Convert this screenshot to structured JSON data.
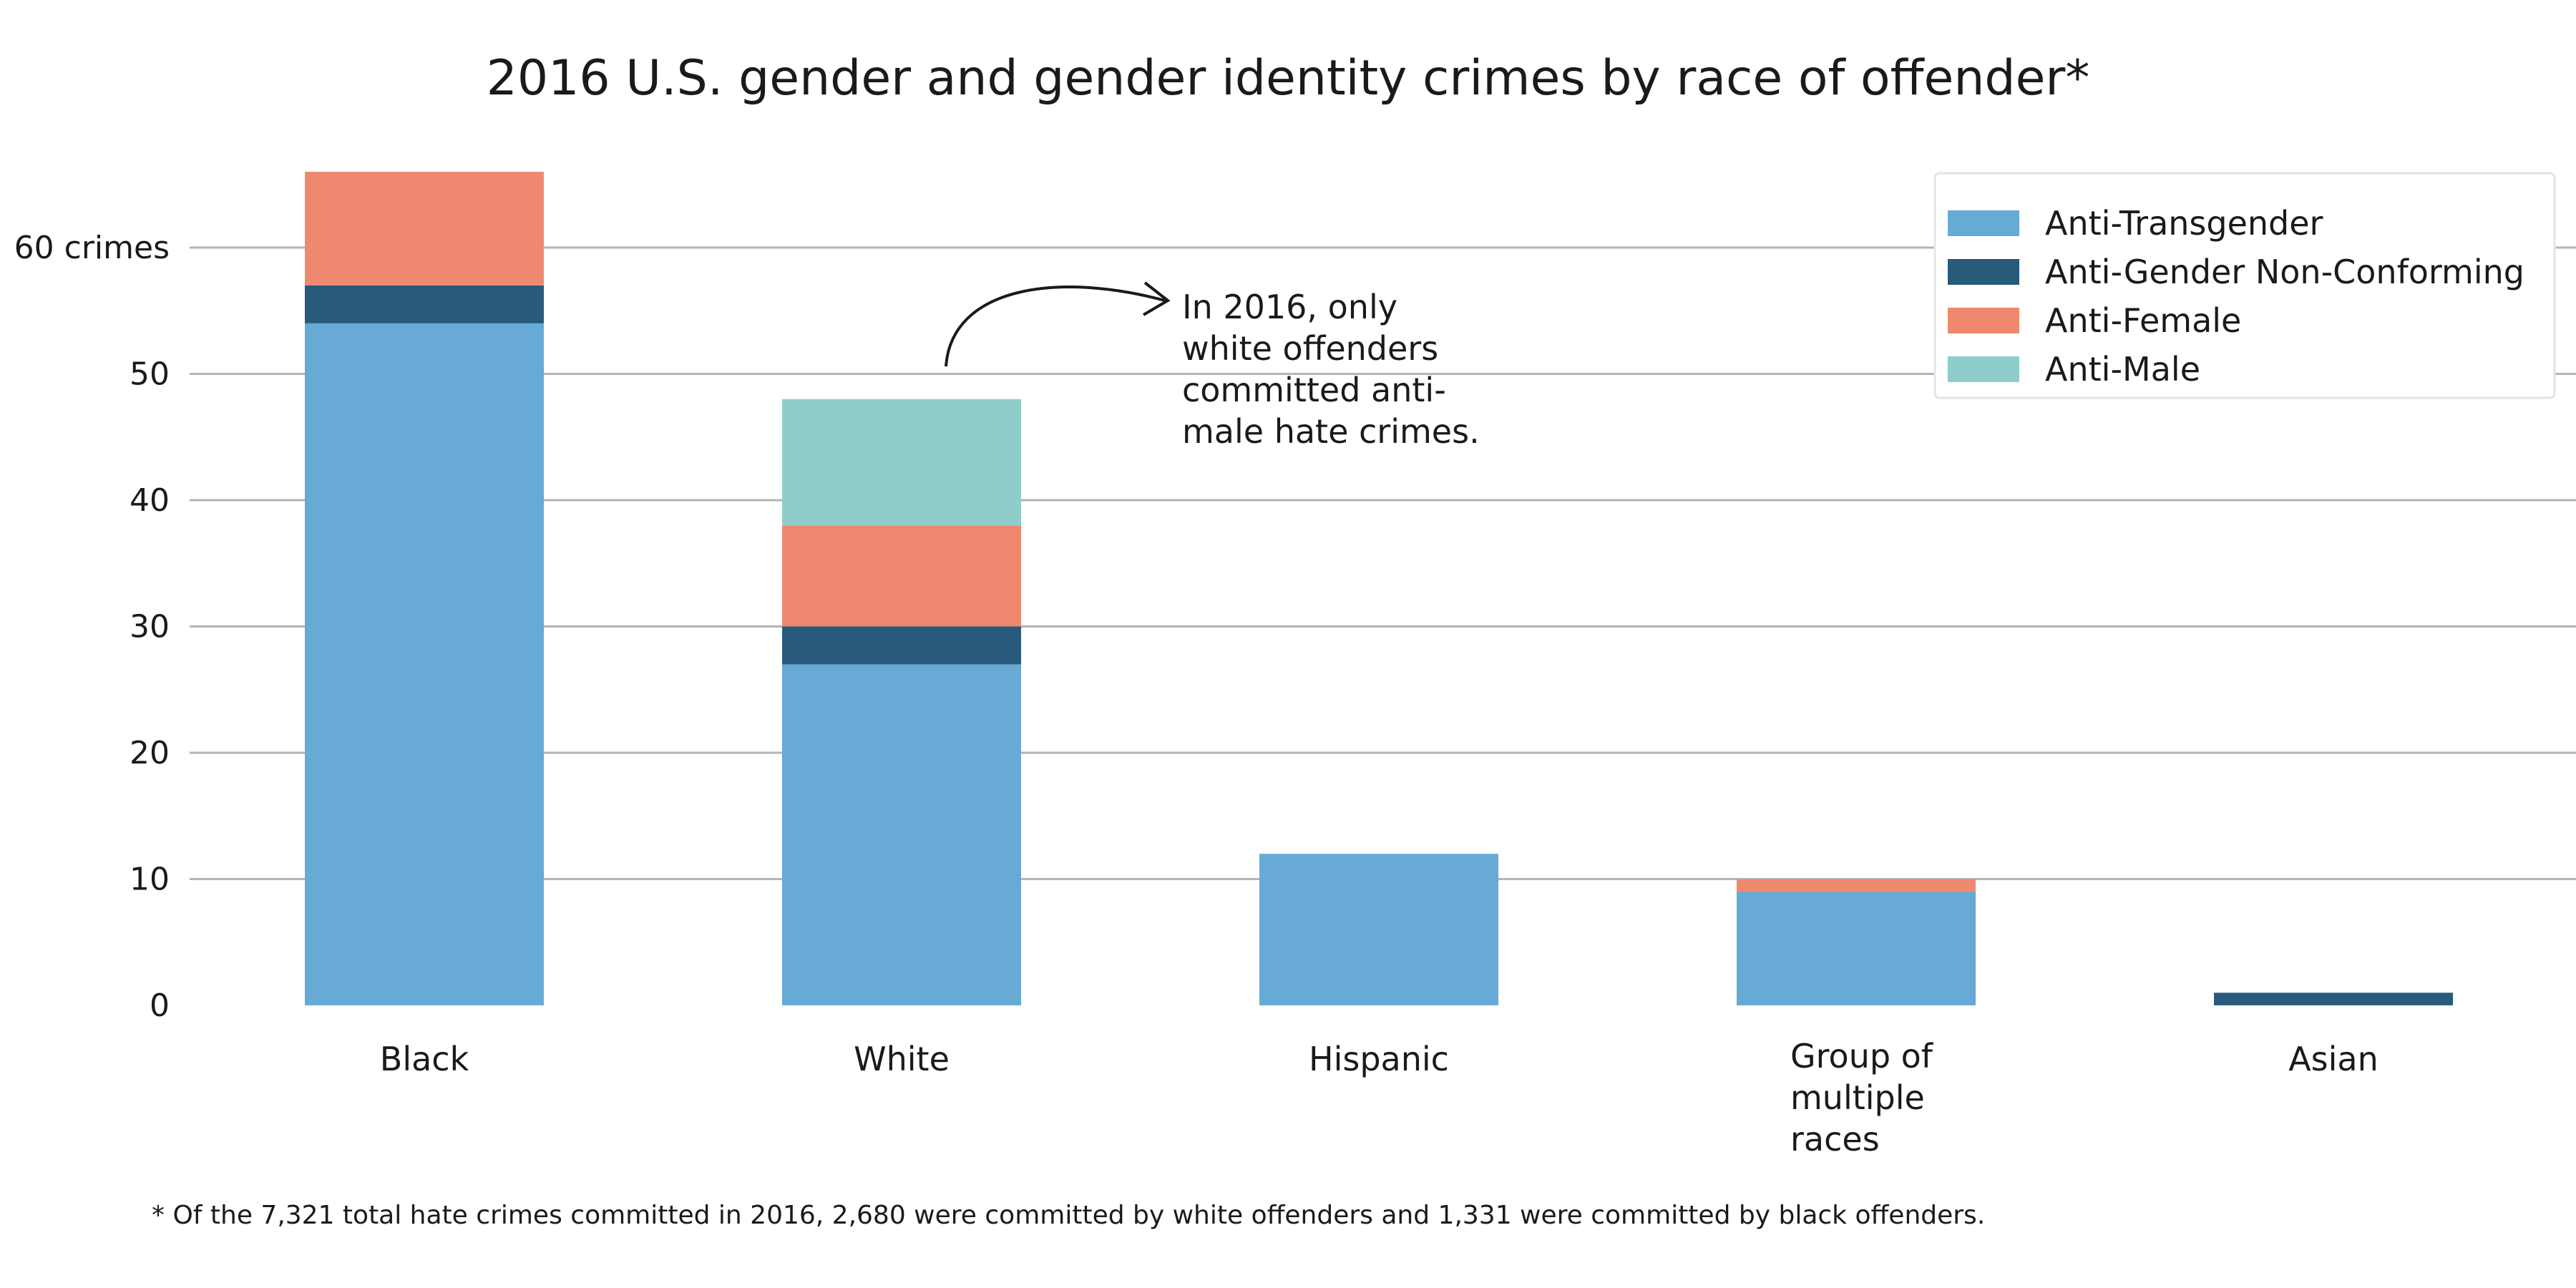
{
  "chart_data": {
    "type": "bar",
    "stacked": true,
    "title": "2016 U.S. gender and gender identity crimes by race of offender*",
    "xlabel": "",
    "ylabel": "",
    "ylim": [
      0,
      66
    ],
    "yticks": [
      0,
      10,
      20,
      30,
      40,
      50,
      60
    ],
    "ytick_labels": [
      "0",
      "10",
      "20",
      "30",
      "40",
      "50",
      "60 crimes"
    ],
    "grid": true,
    "legend_position": "top-right",
    "categories": [
      [
        "Black"
      ],
      [
        "White"
      ],
      [
        "Hispanic"
      ],
      [
        "Group of",
        "multiple",
        "races"
      ],
      [
        "Asian"
      ]
    ],
    "series": [
      {
        "name": "Anti-Transgender",
        "color": "#66aad5",
        "values": [
          54,
          27,
          12,
          9,
          0
        ]
      },
      {
        "name": "Anti-Gender Non-Conforming",
        "color": "#285a7b",
        "values": [
          3,
          3,
          0,
          0,
          1
        ]
      },
      {
        "name": "Anti-Female",
        "color": "#ee8970",
        "values": [
          9,
          8,
          0,
          1,
          0
        ]
      },
      {
        "name": "Anti-Male",
        "color": "#8ecdc9",
        "values": [
          0,
          10,
          0,
          0,
          0
        ]
      }
    ],
    "annotation": {
      "lines": [
        "In 2016, only",
        "white offenders",
        "committed anti-",
        "male hate crimes."
      ],
      "target_category": 1
    },
    "footnote": "* Of the 7,321 total hate crimes committed in 2016, 2,680 were committed by white offenders and 1,331 were committed by black offenders."
  }
}
